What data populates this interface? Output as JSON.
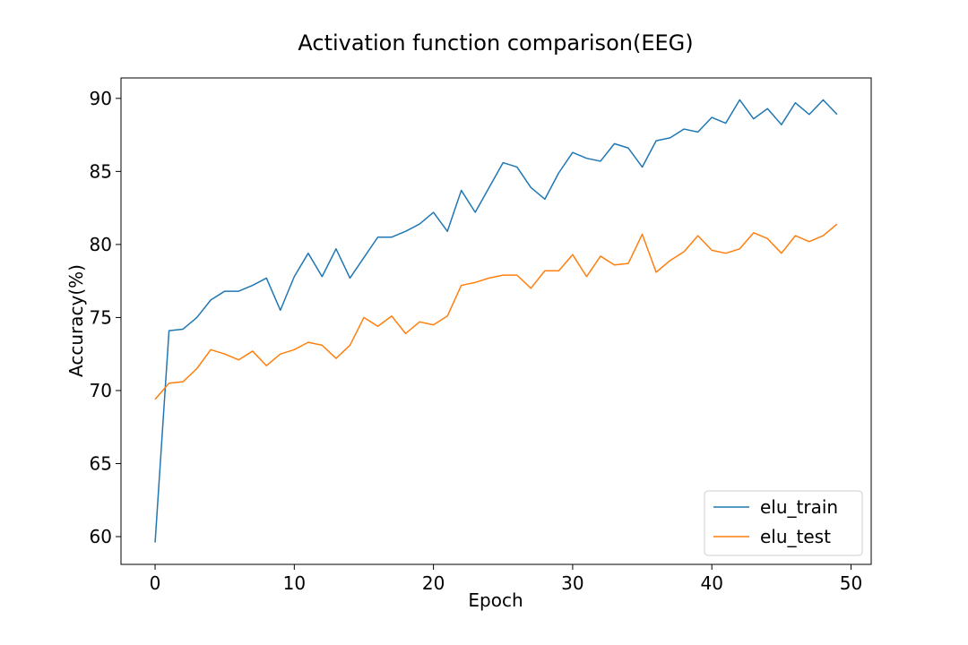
{
  "chart_data": {
    "type": "line",
    "title": "Activation function comparison(EEG)",
    "xlabel": "Epoch",
    "ylabel": "Accuracy(%)",
    "xlim": [
      -2.45,
      51.45
    ],
    "ylim": [
      58.1,
      91.4
    ],
    "x_ticks": [
      0,
      10,
      20,
      30,
      40,
      50
    ],
    "y_ticks": [
      60,
      65,
      70,
      75,
      80,
      85,
      90
    ],
    "grid": false,
    "legend_position": "lower-right",
    "x": [
      0,
      1,
      2,
      3,
      4,
      5,
      6,
      7,
      8,
      9,
      10,
      11,
      12,
      13,
      14,
      15,
      16,
      17,
      18,
      19,
      20,
      21,
      22,
      23,
      24,
      25,
      26,
      27,
      28,
      29,
      30,
      31,
      32,
      33,
      34,
      35,
      36,
      37,
      38,
      39,
      40,
      41,
      42,
      43,
      44,
      45,
      46,
      47,
      48,
      49
    ],
    "series": [
      {
        "name": "elu_train",
        "color": "#1f77b4",
        "values": [
          59.6,
          74.1,
          74.2,
          75.0,
          76.2,
          76.8,
          76.8,
          77.2,
          77.7,
          75.5,
          77.8,
          79.4,
          77.8,
          79.7,
          77.7,
          79.1,
          80.5,
          80.5,
          80.9,
          81.4,
          82.2,
          80.9,
          83.7,
          82.2,
          83.9,
          85.6,
          85.3,
          83.9,
          83.1,
          84.9,
          86.3,
          85.9,
          85.7,
          86.9,
          86.6,
          85.3,
          87.1,
          87.3,
          87.9,
          87.7,
          88.7,
          88.3,
          89.9,
          88.6,
          89.3,
          88.2,
          89.7,
          88.9,
          89.9,
          88.9
        ]
      },
      {
        "name": "elu_test",
        "color": "#ff7f0e",
        "values": [
          69.4,
          70.5,
          70.6,
          71.5,
          72.8,
          72.5,
          72.1,
          72.7,
          71.7,
          72.5,
          72.8,
          73.3,
          73.1,
          72.2,
          73.1,
          75.0,
          74.4,
          75.1,
          73.9,
          74.7,
          74.5,
          75.1,
          77.2,
          77.4,
          77.7,
          77.9,
          77.9,
          77.0,
          78.2,
          78.2,
          79.3,
          77.8,
          79.2,
          78.6,
          78.7,
          80.7,
          78.1,
          78.9,
          79.5,
          80.6,
          79.6,
          79.4,
          79.7,
          80.8,
          80.4,
          79.4,
          80.6,
          80.2,
          80.6,
          81.4
        ]
      }
    ]
  }
}
